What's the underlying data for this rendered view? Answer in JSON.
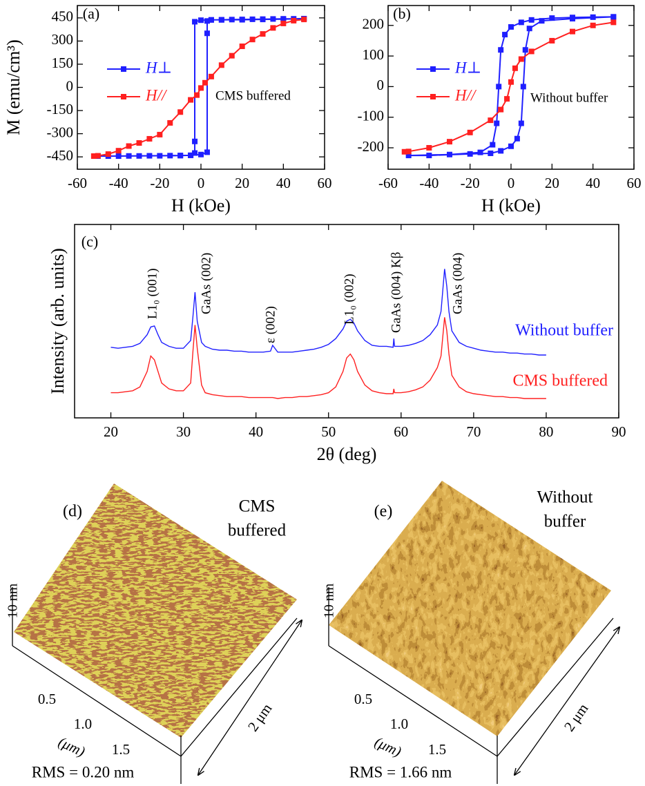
{
  "chart_data": [
    {
      "type": "line",
      "label": "(a)",
      "xlabel": "H (kOe)",
      "ylabel": "M (emu/cm³)",
      "xlim": [
        -60,
        60
      ],
      "xticks": [
        -60,
        -40,
        -20,
        0,
        20,
        40,
        60
      ],
      "ylim": [
        -530,
        530
      ],
      "yticks": [
        -450,
        -300,
        -150,
        0,
        150,
        300,
        450
      ],
      "legend": "left",
      "annotations": [
        "CMS buffered"
      ],
      "series": [
        {
          "name": "H⊥",
          "color": "#1f1fff",
          "marker": "square",
          "x": [
            50,
            40,
            30,
            20,
            10,
            5,
            0,
            -3,
            -3,
            -3,
            -5,
            -10,
            -20,
            -30,
            -40,
            -50,
            -45,
            -35,
            -25,
            -15,
            -10,
            -5,
            0,
            3,
            3,
            3,
            5,
            10,
            15,
            20,
            25,
            30,
            35,
            40,
            45,
            50
          ],
          "values": [
            445,
            442,
            440,
            438,
            437,
            437,
            435,
            425,
            -350,
            -425,
            -440,
            -442,
            -443,
            -444,
            -445,
            -445,
            -445,
            -444,
            -443,
            -442,
            -441,
            -440,
            -435,
            -420,
            350,
            430,
            437,
            438,
            439,
            440,
            441,
            442,
            443,
            444,
            444,
            445
          ]
        },
        {
          "name": "H//",
          "color": "#ff2020",
          "marker": "square",
          "x": [
            -52,
            -50,
            -45,
            -40,
            -35,
            -30,
            -25,
            -20,
            -15,
            -10,
            -5,
            -2,
            0,
            2,
            5,
            10,
            15,
            20,
            25,
            30,
            35,
            40,
            45,
            50
          ],
          "values": [
            -445,
            -443,
            -432,
            -410,
            -380,
            -360,
            -333,
            -306,
            -230,
            -160,
            -81,
            -50,
            -4,
            30,
            70,
            144,
            205,
            266,
            310,
            346,
            385,
            414,
            432,
            440
          ]
        }
      ]
    },
    {
      "type": "line",
      "label": "(b)",
      "xlabel": "H (kOe)",
      "xlim": [
        -60,
        60
      ],
      "xticks": [
        -60,
        -40,
        -20,
        0,
        20,
        40,
        60
      ],
      "ylim": [
        -270,
        265
      ],
      "yticks": [
        -200,
        -100,
        0,
        100,
        200
      ],
      "legend": "left",
      "annotations": [
        "Without buffer"
      ],
      "series": [
        {
          "name": "H⊥",
          "color": "#1f1fff",
          "marker": "square",
          "x": [
            50,
            40,
            30,
            20,
            10,
            5,
            0,
            -3,
            -5,
            -6,
            -7,
            -9,
            -15,
            -30,
            -50,
            -40,
            -20,
            -10,
            -5,
            0,
            3,
            5,
            6,
            7,
            9,
            15,
            30,
            50
          ],
          "values": [
            228,
            227,
            226,
            224,
            218,
            210,
            195,
            170,
            120,
            0,
            -120,
            -190,
            -215,
            -222,
            -225,
            -225,
            -220,
            -218,
            -210,
            -195,
            -170,
            -120,
            0,
            120,
            190,
            215,
            222,
            228
          ]
        },
        {
          "name": "H//",
          "color": "#ff2020",
          "marker": "square",
          "x": [
            -52,
            -50,
            -40,
            -30,
            -20,
            -10,
            -5,
            -2,
            0,
            2,
            5,
            10,
            20,
            30,
            40,
            50
          ],
          "values": [
            -213,
            -212,
            -200,
            -180,
            -150,
            -110,
            -75,
            -40,
            15,
            60,
            90,
            115,
            150,
            180,
            200,
            210
          ]
        }
      ]
    },
    {
      "type": "line",
      "label": "(c)",
      "xlabel": "2θ (deg)",
      "ylabel": "Intensity (arb. units)",
      "xlim": [
        15,
        90
      ],
      "xticks": [
        20,
        30,
        40,
        50,
        60,
        70,
        80,
        90
      ],
      "ylim": [
        0,
        100
      ],
      "legend": "inline",
      "annotations": [
        "L1₀ (001)",
        "GaAs (002)",
        "ε (002)",
        "L1₀ (002)",
        "GaAs (004) Kβ",
        "GaAs (004)"
      ],
      "x": [
        20,
        21,
        22,
        23,
        24,
        25,
        25.5,
        26,
        26.5,
        27,
        28,
        29,
        30,
        31,
        31.3,
        31.6,
        31.9,
        32.5,
        33,
        34,
        35,
        36,
        37,
        38,
        39,
        40,
        41,
        42,
        42.3,
        43,
        44,
        45,
        46,
        47,
        48,
        49,
        50,
        51,
        52,
        52.5,
        53,
        53.5,
        54,
        55,
        56,
        57,
        58,
        58.9,
        59,
        59.1,
        60,
        61,
        62,
        63,
        64,
        65,
        65.5,
        66,
        66.3,
        66.6,
        67,
        68,
        69,
        70,
        71,
        72,
        73,
        74,
        75,
        76,
        77,
        78,
        79,
        80
      ],
      "series": [
        {
          "name": "Without buffer",
          "color": "#1f1fff",
          "values": [
            36.5,
            36,
            36.5,
            37,
            38.5,
            43,
            47,
            47.5,
            43,
            39,
            37,
            36,
            36,
            40,
            52,
            65,
            50,
            39,
            37,
            35.5,
            35,
            35,
            34.5,
            34.5,
            34,
            34,
            34,
            34.5,
            37.5,
            34,
            34,
            34,
            34.5,
            35,
            35.5,
            36.5,
            38,
            41,
            46,
            50,
            51,
            49,
            45,
            40,
            37.5,
            37,
            37,
            36.5,
            41,
            37,
            37,
            37.5,
            38.5,
            40,
            43,
            48,
            55,
            77,
            68,
            55,
            45,
            39,
            37,
            36,
            35,
            34.5,
            34,
            34,
            33.5,
            33.5,
            33,
            33,
            32.5,
            32.5
          ]
        },
        {
          "name": "CMS buffered",
          "color": "#ff2020",
          "values": [
            13,
            13,
            13.5,
            14,
            16,
            24,
            32,
            30,
            24,
            18,
            15,
            14,
            14,
            18,
            34,
            48,
            36,
            17,
            13,
            12,
            11.5,
            11,
            11,
            11,
            10.5,
            10.5,
            10.5,
            10.5,
            10.5,
            10,
            10.5,
            10.5,
            11,
            11,
            11.5,
            12,
            13,
            16,
            24,
            31,
            33,
            30,
            24,
            17,
            14,
            13,
            12.5,
            12.5,
            15,
            13,
            13,
            13.5,
            14.5,
            16,
            19.5,
            26,
            32,
            52,
            45,
            33,
            22,
            16,
            13.5,
            12.5,
            12,
            11.5,
            11,
            11,
            10.5,
            10.5,
            10,
            10,
            10,
            10
          ]
        }
      ]
    }
  ],
  "afm_images": [
    {
      "label": "(d)",
      "caption": [
        "CMS",
        "buffered"
      ],
      "z_scale": "10 nm",
      "ticks": [
        "0.5",
        "1.0",
        "1.5"
      ],
      "unit": "(μm)",
      "side": "2 μm",
      "rms": "RMS = 0.20 nm"
    },
    {
      "label": "(e)",
      "caption": [
        "Without",
        "buffer"
      ],
      "z_scale": "10 nm",
      "ticks": [
        "0.5",
        "1.0",
        "1.5"
      ],
      "unit": "(μm)",
      "side": "2 μm",
      "rms": "RMS = 1.66 nm"
    }
  ]
}
